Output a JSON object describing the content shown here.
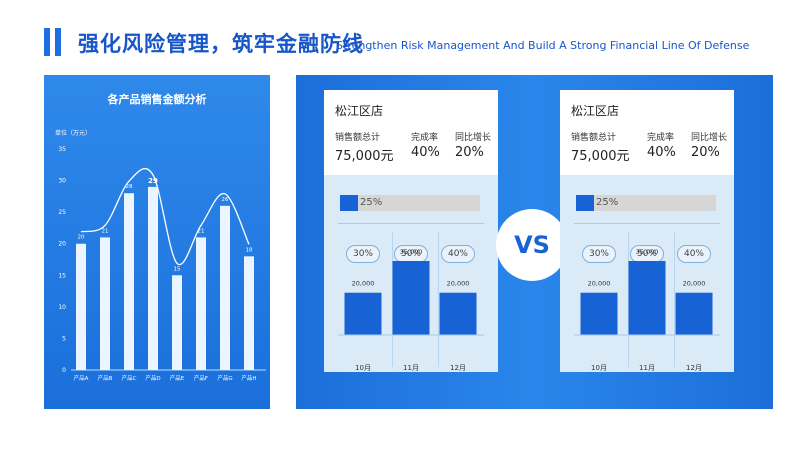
{
  "header": {
    "title_cn": "强化风险管理，筑牢金融防线",
    "title_en": "Strengthen Risk Management And Build A Strong Financial Line Of Defense"
  },
  "left_chart": {
    "title": "各产品销售金额分析",
    "unit_label": "单位（万元）"
  },
  "chart_data": {
    "type": "bar",
    "title": "各产品销售金额分析",
    "ylabel": "单位（万元）",
    "categories": [
      "产品A",
      "产品B",
      "产品C",
      "产品D",
      "产品E",
      "产品F",
      "产品G",
      "产品H"
    ],
    "values": [
      20,
      21,
      28,
      29,
      15,
      21,
      26,
      18
    ],
    "yticks": [
      "0",
      "5",
      "10",
      "15",
      "20",
      "25",
      "30",
      "35"
    ],
    "ylim": [
      0,
      35
    ],
    "overlay": "smooth-line",
    "grid": false
  },
  "vs_label": "VS",
  "stores": [
    {
      "name": "松江区店",
      "total_label": "销售额总计",
      "total_value": "75,000元",
      "rate_label": "完成率",
      "rate_value": "40%",
      "growth_label": "同比增长",
      "growth_value": "20%",
      "progress": 25,
      "progress_text": "25%",
      "pills": [
        "30%",
        "50%",
        "40%"
      ],
      "months": [
        "10月",
        "11月",
        "12月"
      ],
      "month_values": [
        20000,
        35000,
        20000
      ],
      "month_labels": [
        "20,000",
        "35,000",
        "20,000"
      ]
    },
    {
      "name": "松江区店",
      "total_label": "销售额总计",
      "total_value": "75,000元",
      "rate_label": "完成率",
      "rate_value": "40%",
      "growth_label": "同比增长",
      "growth_value": "20%",
      "progress": 25,
      "progress_text": "25%",
      "pills": [
        "30%",
        "50%",
        "40%"
      ],
      "months": [
        "10月",
        "11月",
        "12月"
      ],
      "month_values": [
        20000,
        35000,
        20000
      ],
      "month_labels": [
        "20,000",
        "35,000",
        "20,000"
      ]
    }
  ],
  "colors": {
    "accent": "#1763d6",
    "panel": "#1f78e3",
    "card_bottom": "#dbeaf7"
  }
}
